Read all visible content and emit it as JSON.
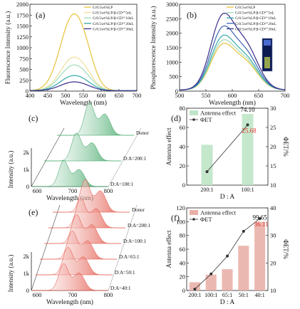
{
  "colors": {
    "yellow": "#e8c23c",
    "pale_yellow": "#f0df9a",
    "light_green": "#9fdcb8",
    "teal": "#36a8a8",
    "blue": "#3a64b0",
    "navy": "#3a2e8c",
    "green": "#2e9e58",
    "red": "#e04a3c",
    "bar_green": "#bfe5c8",
    "bar_red": "#e9b0a8",
    "label_red": "#e0342a"
  },
  "panels": {
    "a": {
      "letter": "(a)"
    },
    "b": {
      "letter": "(b)"
    },
    "c": {
      "letter": "(c)"
    },
    "d": {
      "letter": "(d)"
    },
    "e": {
      "letter": "(e)"
    },
    "f": {
      "letter": "(f)"
    }
  },
  "chart_data": [
    {
      "panel": "a",
      "type": "line",
      "xlabel": "Wavelength (nm)",
      "ylabel": "Fluorescence Intensity (a.u.)",
      "xlim": [
        400,
        700
      ],
      "ylim": [
        0,
        2000
      ],
      "xticks": [
        400,
        450,
        500,
        550,
        600,
        650,
        700
      ],
      "yticks": [
        0,
        250,
        500,
        750,
        1000,
        1250,
        1500,
        1750,
        2000
      ],
      "legend_position": "top-right",
      "series": [
        {
          "name": "G/0.5wt%LP",
          "peak_x": 520,
          "peak_y": 1670,
          "color": "#e8c23c"
        },
        {
          "name": "G/0.5wt%LP/β-CD²⁺5nL",
          "peak_x": 520,
          "peak_y": 730,
          "color": "#f0df9a"
        },
        {
          "name": "G/0.5wt%LP/β-CD²⁺10nL",
          "peak_x": 520,
          "peak_y": 560,
          "color": "#9fdcb8"
        },
        {
          "name": "G/0.5wt%LP/β-CD²⁺20nL",
          "peak_x": 520,
          "peak_y": 330,
          "color": "#36a8a8"
        },
        {
          "name": "G/0.5wt%LP/β-CD²⁺30nL",
          "peak_x": 520,
          "peak_y": 190,
          "color": "#3a2e8c"
        }
      ]
    },
    {
      "panel": "b",
      "type": "line",
      "xlabel": "Wavelength (nm)",
      "ylabel": "Phosphorescence Intensity (a.u.)",
      "xlim": [
        500,
        700
      ],
      "ylim": [
        0,
        3000
      ],
      "xticks": [
        500,
        550,
        600,
        650,
        700
      ],
      "yticks": [
        0,
        500,
        1000,
        1500,
        2000,
        2500,
        3000
      ],
      "legend_position": "top-right",
      "series": [
        {
          "name": "G/0.5wt%LP",
          "peak_x": 580,
          "peak_y": 1430,
          "color": "#e8c23c"
        },
        {
          "name": "G/0.5wt%LP/β-CD²⁺5nL",
          "peak_x": 580,
          "peak_y": 1540,
          "color": "#9fdcb8"
        },
        {
          "name": "G/0.5wt%LP/β-CD²⁺10nL",
          "peak_x": 580,
          "peak_y": 1680,
          "color": "#36a8a8"
        },
        {
          "name": "G/0.5wt%LP/β-CD²⁺20nL",
          "peak_x": 580,
          "peak_y": 1960,
          "color": "#3a64b0"
        },
        {
          "name": "G/0.5wt%LP/β-CD²⁺30nL",
          "peak_x": 580,
          "peak_y": 2350,
          "color": "#3a2e8c"
        }
      ]
    },
    {
      "panel": "c",
      "type": "area",
      "xlabel": "Wavelength (nm)",
      "ylabel": "Intensity (a.u.)",
      "xticks": [
        600,
        700,
        800
      ],
      "yticks": [
        "0",
        "1k",
        "2k"
      ],
      "series": [
        {
          "name": "Donor",
          "peak_y": 1.0
        },
        {
          "name": "D:A=200:1",
          "peak_y": 0.85
        },
        {
          "name": "D:A=100:1",
          "peak_y": 0.8
        }
      ]
    },
    {
      "panel": "d",
      "type": "bar",
      "categories": [
        "200:1",
        "100:1"
      ],
      "values": [
        42,
        74.1
      ],
      "phi_et": [
        13.5,
        25.68
      ],
      "bar_label": "74.10",
      "point_label": "25.68",
      "xlabel": "D : A",
      "ylabel": "Antenna effect",
      "y2label": "ΦET/%",
      "ylim": [
        0,
        80
      ],
      "y2lim": [
        10,
        30
      ],
      "yticks": [
        0,
        20,
        40,
        60,
        80
      ],
      "y2ticks": [
        10,
        15,
        20,
        25,
        30
      ],
      "legend": [
        "Antenna effect",
        "ΦET"
      ]
    },
    {
      "panel": "e",
      "type": "area",
      "xlabel": "Wavelength (nm)",
      "ylabel": "Intensity (a.u.)",
      "xticks": [
        600,
        700,
        800
      ],
      "yticks": [
        "0",
        "1k",
        "2k"
      ],
      "series": [
        {
          "name": "Donor",
          "peak_y": 1.0
        },
        {
          "name": "D:A=200:1",
          "peak_y": 0.9
        },
        {
          "name": "D:A=100:1",
          "peak_y": 0.88
        },
        {
          "name": "D:A=65:1",
          "peak_y": 0.86
        },
        {
          "name": "D:A=50:1",
          "peak_y": 0.84
        },
        {
          "name": "D:A=40:1",
          "peak_y": 0.82
        }
      ]
    },
    {
      "panel": "f",
      "type": "bar",
      "categories": [
        "200:1",
        "100:1",
        "65:1",
        "50:1",
        "40:1"
      ],
      "values": [
        12,
        23,
        31,
        65,
        99.65
      ],
      "phi_et": [
        10.5,
        16,
        22.5,
        31.5,
        36.11
      ],
      "bar_label": "99.65",
      "point_label": "36.11",
      "xlabel": "D : A",
      "ylabel": "Antenna effect",
      "y2label": "ΦET/%",
      "ylim": [
        0,
        120
      ],
      "y2lim": [
        10,
        40
      ],
      "yticks": [
        0,
        20,
        40,
        60,
        80,
        100,
        120
      ],
      "y2ticks": [
        10,
        20,
        30,
        40
      ],
      "legend": [
        "Antenna effect",
        "ΦET"
      ]
    }
  ]
}
